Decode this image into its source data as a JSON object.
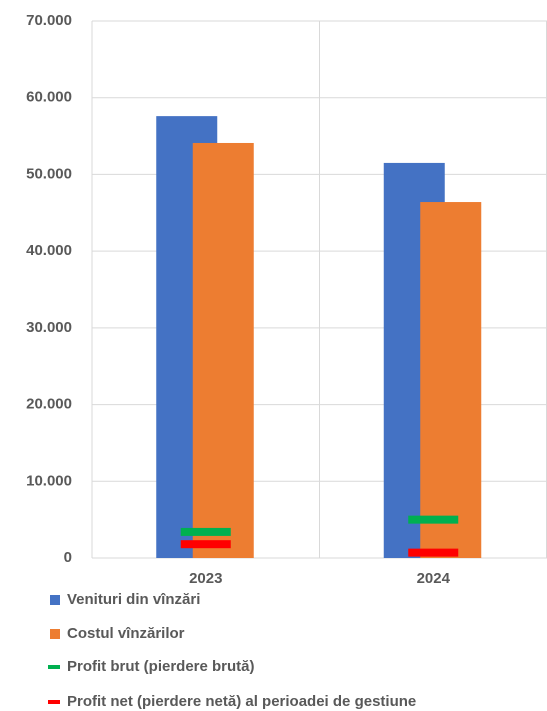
{
  "chart_data": {
    "type": "bar",
    "categories": [
      "2023",
      "2024"
    ],
    "series": [
      {
        "name": "Venituri din vînzări",
        "color": "#4472c4",
        "type": "bar",
        "values": [
          57600,
          51500
        ]
      },
      {
        "name": "Costul vînzărilor",
        "color": "#ed7d31",
        "type": "bar",
        "values": [
          54100,
          46400
        ]
      },
      {
        "name": "Profit brut (pierdere brută)",
        "color": "#00b050",
        "type": "line",
        "values": [
          3400,
          5000
        ]
      },
      {
        "name": "Profit net (pierdere netă) al perioadei de gestiune",
        "color": "#ff0000",
        "type": "line",
        "values": [
          1800,
          700
        ]
      }
    ],
    "ylim": [
      0,
      70000
    ],
    "yticks": [
      0,
      {
        "value": 10000,
        "label": "10.000"
      },
      {
        "value": 20000,
        "label": "20.000"
      },
      {
        "value": 30000,
        "label": "30.000"
      },
      {
        "value": 40000,
        "label": "40.000"
      },
      {
        "value": 50000,
        "label": "50.000"
      },
      {
        "value": 60000,
        "label": "60.000"
      },
      {
        "value": 70000,
        "label": "70.000"
      }
    ],
    "grid": true,
    "legend": "bottom"
  }
}
